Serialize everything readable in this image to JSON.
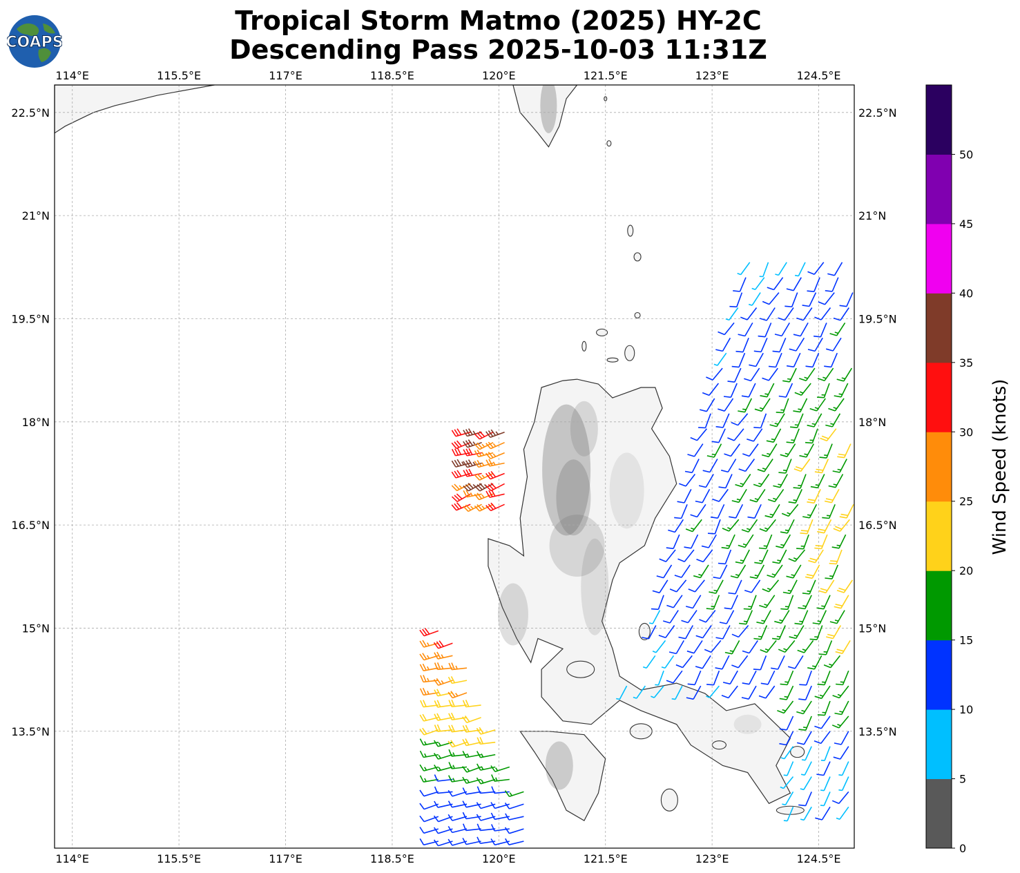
{
  "title": {
    "line1": "Tropical Storm Matmo (2025) HY-2C",
    "line2": "Descending Pass 2025-10-03 11:31Z"
  },
  "logo": {
    "text": "COAPS",
    "ocean_color": "#1f5fae",
    "land_color": "#4f8f3a"
  },
  "map": {
    "lon_ticks": [
      "114°E",
      "115.5°E",
      "117°E",
      "118.5°E",
      "120°E",
      "121.5°E",
      "123°E",
      "124.5°E"
    ],
    "lat_ticks": [
      "22.5°N",
      "21°N",
      "19.5°N",
      "18°N",
      "16.5°N",
      "15°N",
      "13.5°N"
    ],
    "lon_values": [
      114,
      115.5,
      117,
      118.5,
      120,
      121.5,
      123,
      124.5
    ],
    "lat_values": [
      22.5,
      21,
      19.5,
      18,
      16.5,
      15,
      13.5
    ],
    "extent": {
      "lon_min": 113.75,
      "lon_max": 125.0,
      "lat_min": 11.8,
      "lat_max": 22.9
    },
    "grid": true,
    "land_fill": "#f4f4f4",
    "terrain_color": "#6e6e6e",
    "coast_color": "#333333"
  },
  "colorbar": {
    "label": "Wind Speed (knots)",
    "ticks": [
      "0",
      "5",
      "10",
      "15",
      "20",
      "25",
      "30",
      "35",
      "40",
      "45",
      "50"
    ],
    "bins": [
      {
        "min": 0,
        "max": 5,
        "color": "#595959"
      },
      {
        "min": 5,
        "max": 10,
        "color": "#00bfff"
      },
      {
        "min": 10,
        "max": 15,
        "color": "#0033ff"
      },
      {
        "min": 15,
        "max": 20,
        "color": "#009900"
      },
      {
        "min": 20,
        "max": 25,
        "color": "#ffd21a"
      },
      {
        "min": 25,
        "max": 30,
        "color": "#ff8c0a"
      },
      {
        "min": 30,
        "max": 35,
        "color": "#ff0f0f"
      },
      {
        "min": 35,
        "max": 40,
        "color": "#7f3b29"
      },
      {
        "min": 40,
        "max": 45,
        "color": "#f000f0"
      },
      {
        "min": 45,
        "max": 50,
        "color": "#8000b0"
      },
      {
        "min": 50,
        "max": 55,
        "color": "#2b0060"
      }
    ]
  },
  "wind_swaths": [
    {
      "region": "west-north",
      "lon_range": [
        119.55,
        120.1
      ],
      "lat_range": [
        16.8,
        17.85
      ],
      "speed_kt": [
        25,
        38
      ]
    },
    {
      "region": "west-south",
      "lon_range": [
        119.1,
        120.6
      ],
      "lat_range": [
        11.9,
        15.1
      ],
      "speed_kt": [
        10,
        33
      ]
    },
    {
      "region": "east-main",
      "lon_range": [
        121.8,
        125.0
      ],
      "lat_range": [
        12.3,
        20.5
      ],
      "speed_kt": [
        7,
        29
      ]
    }
  ]
}
